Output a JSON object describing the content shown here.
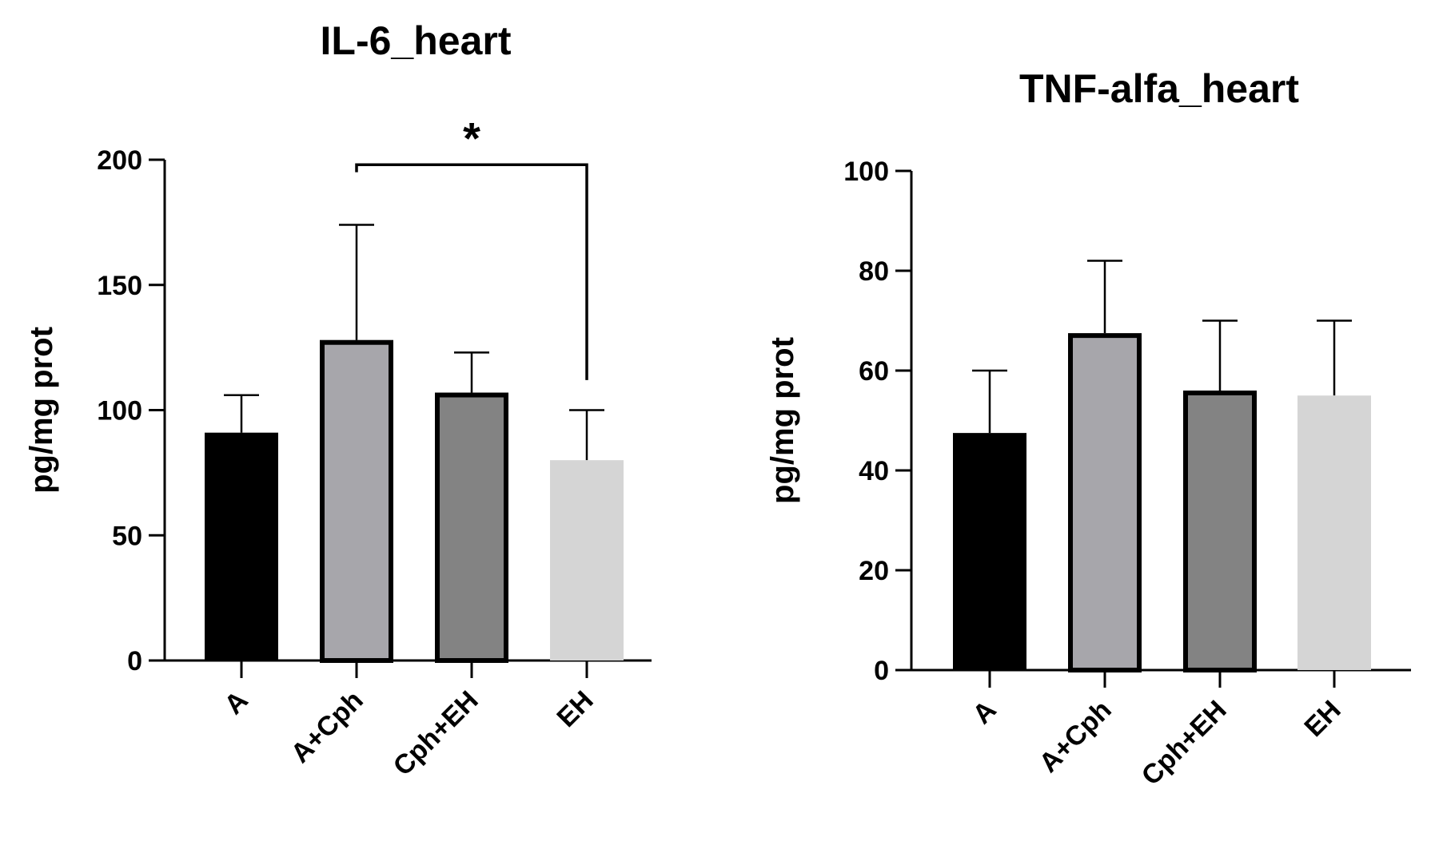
{
  "chart_data": [
    {
      "type": "bar",
      "title": "IL-6_heart",
      "xlabel": "",
      "ylabel": "pg/mg prot",
      "categories": [
        "A",
        "A+Cph",
        "Cph+EH",
        "EH"
      ],
      "values": [
        91,
        128,
        107,
        80
      ],
      "error": [
        15,
        46,
        16,
        20
      ],
      "bar_colors": [
        "#000000",
        "#a7a6ab",
        "#838383",
        "#d5d5d5"
      ],
      "bar_outlined": [
        false,
        true,
        true,
        false
      ],
      "ylim": [
        0,
        200
      ],
      "yticks": [
        0,
        50,
        100,
        150,
        200
      ],
      "grid": false,
      "significance": [
        {
          "from": "A+Cph",
          "to": "EH",
          "label": "*",
          "from_start": 195,
          "to_start": 112,
          "bracket_y": 198
        }
      ]
    },
    {
      "type": "bar",
      "title": "TNF-alfa_heart",
      "xlabel": "",
      "ylabel": "pg/mg prot",
      "categories": [
        "A",
        "A+Cph",
        "Cph+EH",
        "EH"
      ],
      "values": [
        47.5,
        67.5,
        56,
        55
      ],
      "error": [
        12.5,
        14.5,
        14,
        15
      ],
      "bar_colors": [
        "#000000",
        "#a7a6ab",
        "#838383",
        "#d5d5d5"
      ],
      "bar_outlined": [
        false,
        true,
        true,
        false
      ],
      "ylim": [
        0,
        100
      ],
      "yticks": [
        0,
        20,
        40,
        60,
        80,
        100
      ],
      "grid": false,
      "significance": []
    }
  ]
}
